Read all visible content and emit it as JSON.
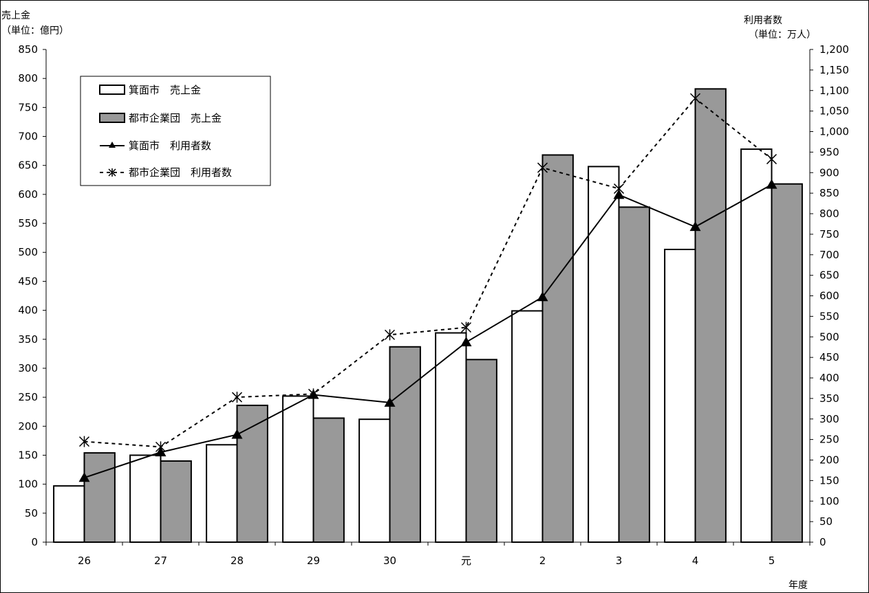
{
  "chart_data": {
    "type": "bar",
    "categories": [
      "26",
      "27",
      "28",
      "29",
      "30",
      "元",
      "2",
      "3",
      "4",
      "5"
    ],
    "series": [
      {
        "name": "箕面市　売上金",
        "kind": "bar",
        "axis": "left",
        "color": "#ffffff",
        "values": [
          97,
          150,
          168,
          252,
          212,
          361,
          399,
          648,
          505,
          678
        ]
      },
      {
        "name": "都市企業団　売上金",
        "kind": "bar",
        "axis": "left",
        "color": "#999999",
        "values": [
          154,
          140,
          236,
          214,
          337,
          315,
          668,
          578,
          782,
          618
        ]
      },
      {
        "name": "箕面市　利用者数",
        "kind": "line",
        "axis": "right",
        "marker": "triangle",
        "dash": "solid",
        "values": [
          157,
          219,
          262,
          359,
          340,
          487,
          597,
          846,
          768,
          871
        ]
      },
      {
        "name": "都市企業団　利用者数",
        "kind": "line",
        "axis": "right",
        "marker": "asterisk",
        "dash": "dashed",
        "values": [
          245,
          232,
          353,
          361,
          505,
          523,
          912,
          861,
          1081,
          933
        ]
      }
    ],
    "y_left": {
      "label_line1": "売上金",
      "label_line2": "（単位：億円）",
      "min": 0,
      "max": 850,
      "step": 50,
      "ticks": [
        "0",
        "50",
        "100",
        "150",
        "200",
        "250",
        "300",
        "350",
        "400",
        "450",
        "500",
        "550",
        "600",
        "650",
        "700",
        "750",
        "800",
        "850"
      ]
    },
    "y_right": {
      "label_line1": "利用者数",
      "label_line2": "（単位：万人）",
      "min": 0,
      "max": 1200,
      "step": 50,
      "ticks": [
        "0",
        "50",
        "100",
        "150",
        "200",
        "250",
        "300",
        "350",
        "400",
        "450",
        "500",
        "550",
        "600",
        "650",
        "700",
        "750",
        "800",
        "850",
        "900",
        "950",
        "1,000",
        "1,050",
        "1,100",
        "1,150",
        "1,200"
      ]
    },
    "xlabel": "年度",
    "grid": false,
    "legend_position": "top-left"
  }
}
